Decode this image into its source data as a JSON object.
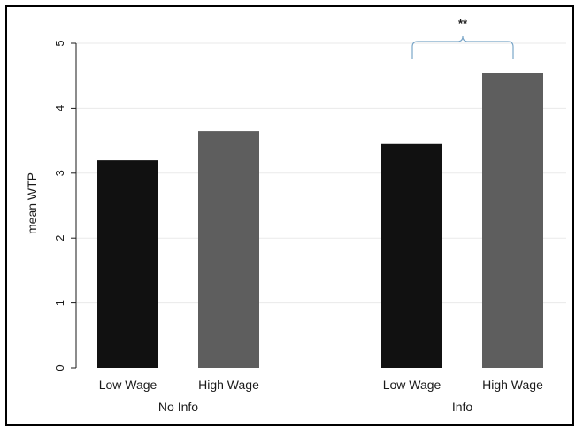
{
  "chart_data": {
    "type": "bar",
    "title": "",
    "ylabel": "mean WTP",
    "xlabel": "",
    "ylim": [
      0,
      5
    ],
    "yticks": [
      "0",
      "1",
      "2",
      "3",
      "4",
      "5"
    ],
    "grid": true,
    "groups": [
      {
        "label": "No Info",
        "bars": [
          {
            "label": "Low Wage",
            "value": 3.2
          },
          {
            "label": "High Wage",
            "value": 3.65
          }
        ]
      },
      {
        "label": "Info",
        "bars": [
          {
            "label": "Low Wage",
            "value": 3.45
          },
          {
            "label": "High Wage",
            "value": 4.55
          }
        ]
      }
    ],
    "annotation": {
      "text": "**",
      "group": "Info"
    },
    "colors": {
      "Low Wage": "#111111",
      "High Wage": "#5e5e5e",
      "grid": "#eaeaea",
      "axis": "#1a1a1a",
      "bracket": "#7aa6c8"
    }
  }
}
